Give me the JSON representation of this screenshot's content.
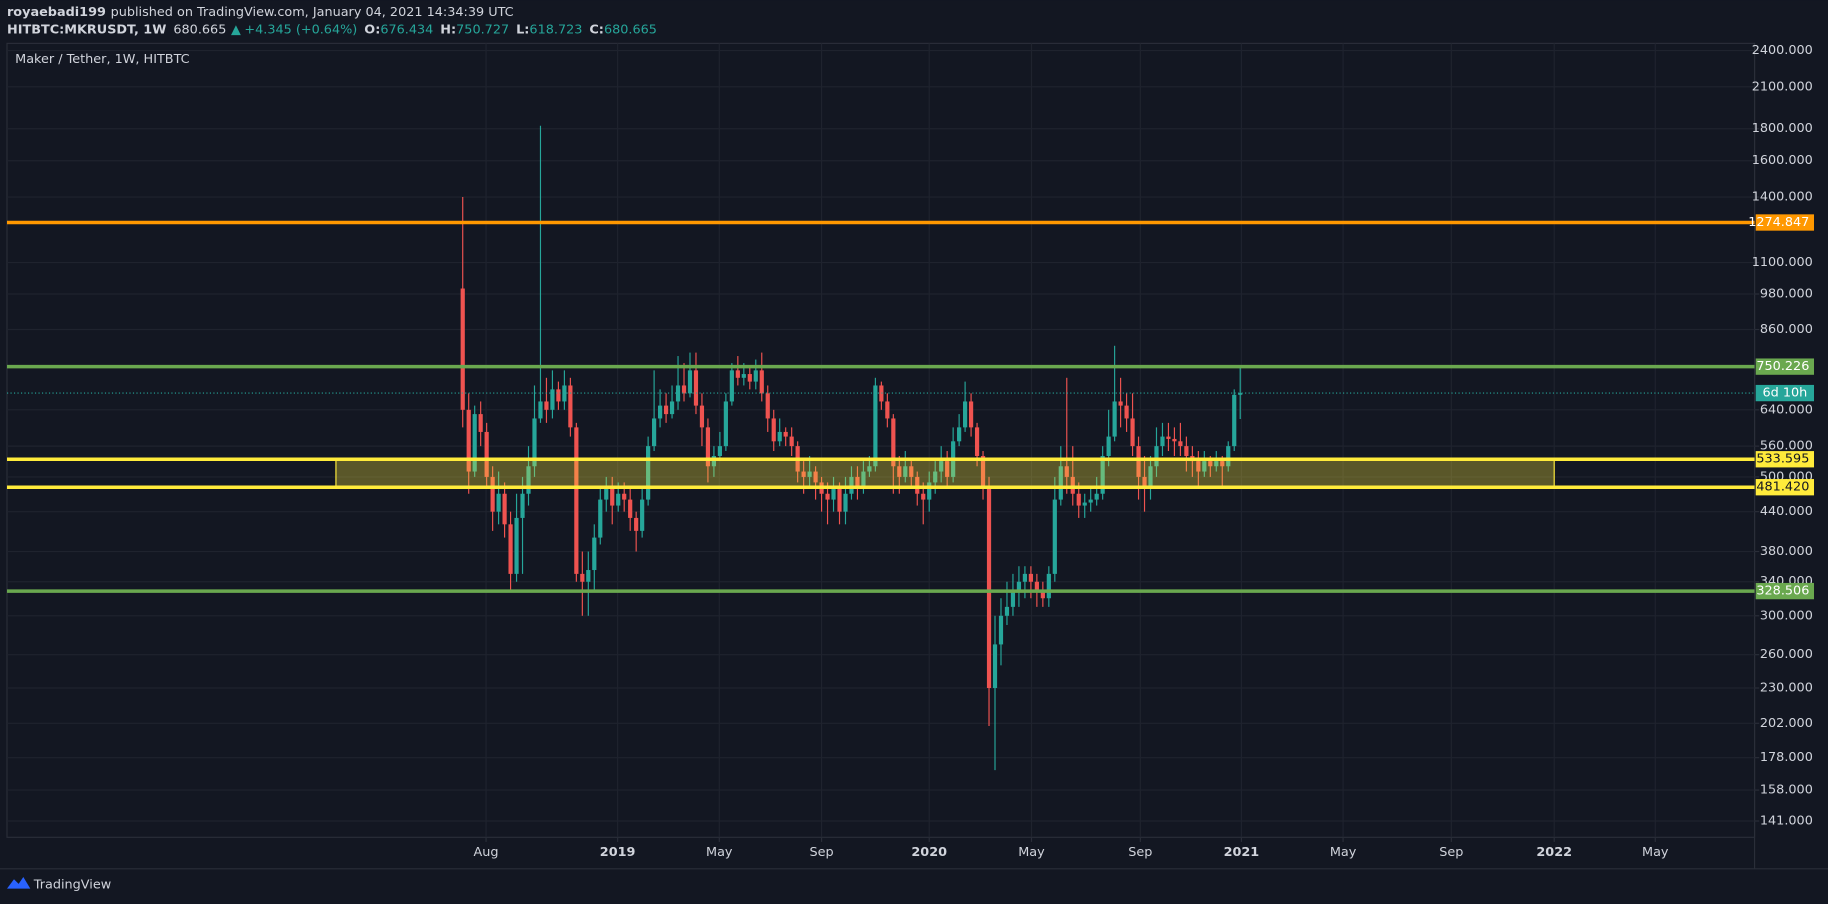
{
  "header": {
    "author": "royaebadi199",
    "published": "published on TradingView.com, January 04, 2021 14:34:39 UTC",
    "symbol": "HITBTC:MKRUSDT, 1W",
    "change": "+4.345 (+0.64%)",
    "o_label": "O:",
    "h_label": "H:",
    "l_label": "L:",
    "c_label": "C:"
  },
  "footer": {
    "brand": "TradingView"
  },
  "chart_data": {
    "type": "candlestick",
    "title": "Maker / Tether, 1W, HITBTC",
    "open": [
      1000,
      640,
      510,
      630,
      590,
      500,
      440,
      470,
      420,
      350,
      430,
      470,
      520,
      620,
      660,
      640,
      690,
      660,
      700,
      600,
      350,
      340,
      355,
      400,
      460,
      480,
      450,
      470,
      460,
      430,
      410,
      460,
      560,
      620,
      650,
      630,
      660,
      700,
      680,
      740,
      650,
      600,
      520,
      540,
      560,
      660,
      740,
      720,
      730,
      710,
      740,
      680,
      620,
      570,
      590,
      580,
      560,
      510,
      500,
      510,
      490,
      470,
      460,
      480,
      440,
      470,
      500,
      480,
      510,
      520,
      700,
      660,
      620,
      520,
      500,
      520,
      500,
      470,
      460,
      490,
      510,
      530,
      500,
      570,
      600,
      660,
      600,
      540,
      480,
      230,
      270,
      300,
      310,
      330,
      340,
      350,
      340,
      330,
      320,
      350,
      460,
      520,
      500,
      470,
      450,
      455,
      460,
      470,
      540,
      580,
      660,
      650,
      620,
      560,
      500,
      480,
      520,
      560,
      580,
      575,
      570,
      560,
      540,
      530,
      510,
      530,
      520,
      530,
      520,
      560,
      676.434
    ],
    "high": [
      1400,
      680,
      650,
      660,
      610,
      520,
      510,
      490,
      440,
      470,
      500,
      560,
      700,
      1820,
      720,
      740,
      710,
      740,
      720,
      610,
      380,
      380,
      420,
      480,
      500,
      500,
      490,
      490,
      480,
      440,
      480,
      580,
      740,
      690,
      680,
      700,
      780,
      760,
      790,
      790,
      680,
      620,
      560,
      590,
      680,
      760,
      780,
      760,
      750,
      770,
      790,
      700,
      640,
      620,
      600,
      600,
      570,
      530,
      540,
      520,
      500,
      490,
      500,
      490,
      500,
      520,
      520,
      530,
      540,
      720,
      710,
      680,
      630,
      540,
      550,
      530,
      510,
      490,
      510,
      530,
      560,
      550,
      600,
      630,
      710,
      680,
      610,
      550,
      500,
      300,
      320,
      340,
      350,
      360,
      360,
      360,
      350,
      340,
      360,
      500,
      560,
      720,
      560,
      490,
      470,
      480,
      500,
      560,
      640,
      810,
      720,
      680,
      680,
      580,
      540,
      540,
      600,
      610,
      610,
      600,
      610,
      580,
      560,
      550,
      550,
      540,
      550,
      540,
      570,
      690,
      750.727
    ],
    "low": [
      600,
      470,
      500,
      560,
      480,
      410,
      420,
      400,
      330,
      340,
      350,
      450,
      500,
      610,
      610,
      620,
      640,
      640,
      580,
      340,
      300,
      300,
      330,
      390,
      440,
      420,
      440,
      440,
      410,
      380,
      400,
      450,
      550,
      600,
      610,
      620,
      640,
      660,
      670,
      630,
      560,
      490,
      500,
      530,
      550,
      650,
      700,
      700,
      690,
      690,
      660,
      590,
      550,
      560,
      560,
      540,
      490,
      470,
      480,
      460,
      440,
      420,
      440,
      420,
      420,
      460,
      460,
      470,
      500,
      510,
      640,
      600,
      470,
      470,
      490,
      480,
      450,
      420,
      440,
      470,
      490,
      480,
      490,
      560,
      590,
      580,
      520,
      460,
      200,
      170,
      250,
      290,
      300,
      310,
      320,
      320,
      310,
      310,
      310,
      340,
      450,
      470,
      450,
      430,
      430,
      440,
      450,
      460,
      520,
      570,
      600,
      590,
      540,
      460,
      440,
      460,
      500,
      540,
      550,
      540,
      540,
      510,
      500,
      480,
      500,
      500,
      510,
      480,
      510,
      550,
      618.723
    ],
    "close": [
      640,
      510,
      630,
      590,
      500,
      440,
      470,
      420,
      350,
      430,
      470,
      520,
      620,
      660,
      640,
      690,
      660,
      700,
      600,
      350,
      340,
      355,
      400,
      460,
      480,
      450,
      470,
      460,
      430,
      410,
      460,
      560,
      620,
      650,
      630,
      660,
      700,
      680,
      740,
      650,
      600,
      520,
      540,
      560,
      660,
      740,
      720,
      730,
      710,
      740,
      680,
      620,
      570,
      590,
      580,
      560,
      510,
      500,
      510,
      490,
      470,
      460,
      480,
      440,
      470,
      500,
      480,
      510,
      520,
      700,
      660,
      620,
      520,
      500,
      520,
      500,
      470,
      460,
      490,
      510,
      530,
      500,
      570,
      600,
      660,
      600,
      540,
      480,
      230,
      270,
      300,
      310,
      330,
      340,
      350,
      340,
      330,
      320,
      350,
      460,
      520,
      500,
      470,
      450,
      455,
      460,
      470,
      540,
      580,
      660,
      650,
      620,
      560,
      500,
      480,
      520,
      560,
      580,
      575,
      570,
      560,
      540,
      530,
      510,
      530,
      520,
      530,
      520,
      560,
      676.32,
      680.665
    ],
    "up_color": "#26a69a",
    "down_color": "#ef5350",
    "xlim": [
      -76.2,
      216
    ],
    "xticks": [
      {
        "value": 3.9,
        "label": "Aug"
      },
      {
        "value": 25.9,
        "label": "2019"
      },
      {
        "value": 42.9,
        "label": "May"
      },
      {
        "value": 60.0,
        "label": "Sep"
      },
      {
        "value": 78.0,
        "label": "2020"
      },
      {
        "value": 95.1,
        "label": "May"
      },
      {
        "value": 113.3,
        "label": "Sep"
      },
      {
        "value": 130.2,
        "label": "2021"
      },
      {
        "value": 147.2,
        "label": "May"
      },
      {
        "value": 165.3,
        "label": "Sep"
      },
      {
        "value": 182.5,
        "label": "2022"
      },
      {
        "value": 199.4,
        "label": "May"
      }
    ],
    "ylim": [
      132.8,
      2464
    ],
    "log_scale": true,
    "grid": true,
    "yticks": [
      {
        "value": 2400,
        "label": "2400.000"
      },
      {
        "value": 2100,
        "label": "2100.000"
      },
      {
        "value": 1800,
        "label": "1800.000"
      },
      {
        "value": 1600,
        "label": "1600.000"
      },
      {
        "value": 1400,
        "label": "1400.000"
      },
      {
        "value": 1100,
        "label": "1100.000"
      },
      {
        "value": 980,
        "label": "980.000"
      },
      {
        "value": 860,
        "label": "860.000"
      },
      {
        "value": 640,
        "label": "640.000"
      },
      {
        "value": 560,
        "label": "560.000"
      },
      {
        "value": 500,
        "label": "500.000"
      },
      {
        "value": 440,
        "label": "440.000"
      },
      {
        "value": 380,
        "label": "380.000"
      },
      {
        "value": 340,
        "label": "340.000"
      },
      {
        "value": 300,
        "label": "300.000"
      },
      {
        "value": 260,
        "label": "260.000"
      },
      {
        "value": 230,
        "label": "230.000"
      },
      {
        "value": 202,
        "label": "202.000"
      },
      {
        "value": 178,
        "label": "178.000"
      },
      {
        "value": 158,
        "label": "158.000"
      },
      {
        "value": 141,
        "label": "141.000"
      }
    ],
    "zone": {
      "x": [
        -21.2,
        182.5
      ],
      "y": [
        481.42,
        533.595
      ],
      "color": "#ffeb3b"
    },
    "levels": [
      {
        "value": 1274.847,
        "color": "#ff9800"
      },
      {
        "value": 750.226,
        "color": "#6aa84f"
      },
      {
        "value": 533.595,
        "color": "#ffeb3b"
      },
      {
        "value": 481.42,
        "label": "481.420",
        "color": "#ffeb3b"
      },
      {
        "value": 328.506,
        "color": "#6aa84f"
      }
    ],
    "countdown": "6d 10h",
    "last_price_color": "#26a69a"
  }
}
